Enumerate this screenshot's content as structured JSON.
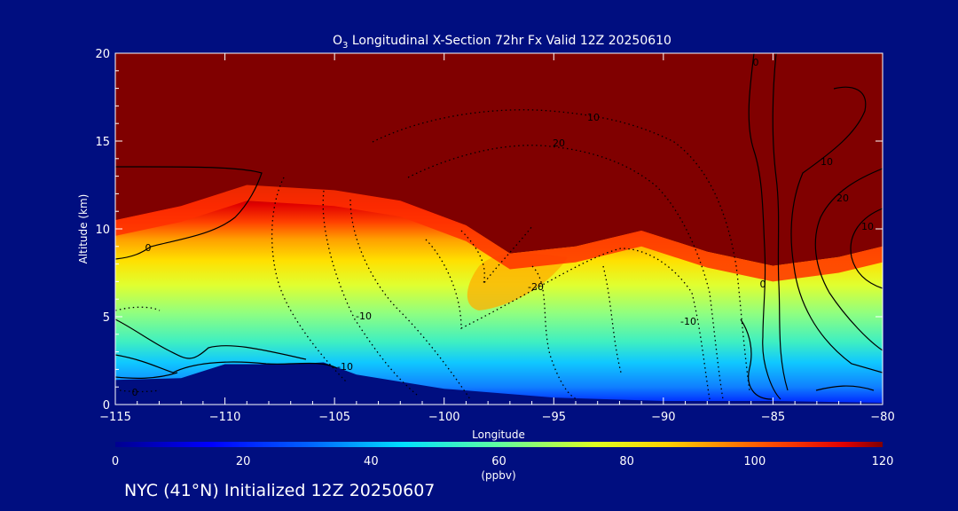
{
  "chart_data": {
    "type": "heatmap",
    "title_prefix": "O",
    "title_subscript": "3",
    "title_rest": " Longitudinal X-Section 72hr  Fx Valid 12Z 20250610",
    "xlabel": "Longitude",
    "ylabel": "Altitude (km)",
    "xlim": [
      -115,
      -80
    ],
    "ylim": [
      0,
      20
    ],
    "x_ticks": [
      -115,
      -110,
      -105,
      -100,
      -95,
      -90,
      -85,
      -80
    ],
    "x_tick_labels": [
      "−115",
      "−110",
      "−105",
      "−100",
      "−95",
      "−90",
      "−85",
      "−80"
    ],
    "y_ticks": [
      0,
      5,
      10,
      15,
      20
    ],
    "y_tick_labels": [
      "0",
      "5",
      "10",
      "15",
      "20"
    ],
    "colorbar": {
      "min": 0,
      "max": 120,
      "unit": "(ppbv)",
      "ticks": [
        0,
        20,
        40,
        60,
        80,
        100,
        120
      ],
      "tick_labels": [
        "0",
        "20",
        "40",
        "60",
        "80",
        "100",
        "120"
      ]
    },
    "field": {
      "description_values": "O3 mixing ratio in ppbv; stratospheric values above ~120",
      "tropopause_km": [
        {
          "lon": -115,
          "alt": 10.5
        },
        {
          "lon": -112,
          "alt": 11.3
        },
        {
          "lon": -109,
          "alt": 12.5
        },
        {
          "lon": -105,
          "alt": 12.2
        },
        {
          "lon": -102,
          "alt": 11.6
        },
        {
          "lon": -99,
          "alt": 10.2
        },
        {
          "lon": -97,
          "alt": 8.6
        },
        {
          "lon": -94,
          "alt": 9.0
        },
        {
          "lon": -91,
          "alt": 9.9
        },
        {
          "lon": -88,
          "alt": 8.7
        },
        {
          "lon": -85,
          "alt": 7.9
        },
        {
          "lon": -82,
          "alt": 8.4
        },
        {
          "lon": -80,
          "alt": 9.0
        }
      ],
      "terrain_km": [
        {
          "lon": -115,
          "alt": 1.4
        },
        {
          "lon": -112,
          "alt": 1.5
        },
        {
          "lon": -110,
          "alt": 2.3
        },
        {
          "lon": -107,
          "alt": 2.3
        },
        {
          "lon": -105.5,
          "alt": 2.4
        },
        {
          "lon": -104,
          "alt": 1.7
        },
        {
          "lon": -100,
          "alt": 0.9
        },
        {
          "lon": -95,
          "alt": 0.4
        },
        {
          "lon": -90,
          "alt": 0.2
        },
        {
          "lon": -85,
          "alt": 0.2
        },
        {
          "lon": -80,
          "alt": 0.1
        }
      ]
    },
    "contour_labels": [
      "10",
      "20",
      "0",
      "-10",
      "-20",
      "-10",
      "0",
      "10",
      "20",
      "10",
      "-10",
      "0",
      "0"
    ]
  },
  "caption": "NYC (41°N) Initialized 12Z 20250607",
  "colors": {
    "background": "#000e80",
    "stratosphere": "#800000",
    "terrain": "#000e80",
    "contour": "#000000"
  }
}
